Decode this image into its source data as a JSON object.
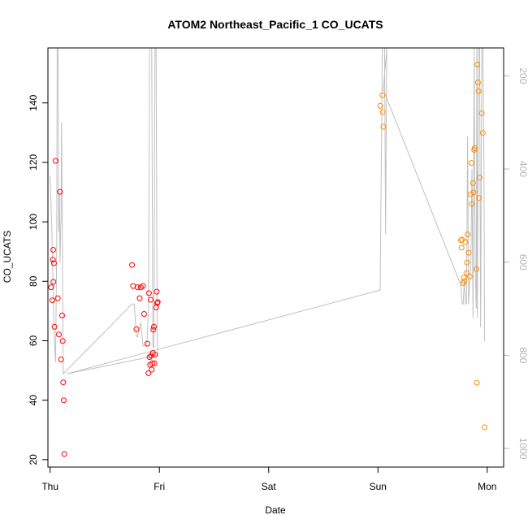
{
  "chart_data": {
    "type": "scatter",
    "title": "ATOM2 Northeast_Pacific_1 CO_UCATS",
    "xlabel": "Date",
    "ylabel": "CO_UCATS",
    "xlim": [
      -0.02,
      4.15
    ],
    "ylim": [
      17.5,
      158.5
    ],
    "x_ticks": [
      {
        "value": 0,
        "label": "Thu"
      },
      {
        "value": 1,
        "label": "Fri"
      },
      {
        "value": 2,
        "label": "Sat"
      },
      {
        "value": 3,
        "label": "Sun"
      },
      {
        "value": 4,
        "label": "Mon"
      }
    ],
    "y_ticks": [
      20,
      40,
      60,
      80,
      100,
      120,
      140
    ],
    "secondary_axis": {
      "side": "right",
      "color": "#b3b3b3",
      "reversed": true,
      "ylim": [
        1040,
        140
      ],
      "ticks": [
        200,
        400,
        600,
        800,
        1000
      ]
    },
    "series": [
      {
        "color": "#ff0000",
        "marker": "open-circle",
        "points": [
          [
            0.01,
            78.0
          ],
          [
            0.02,
            73.6
          ],
          [
            0.025,
            87.3
          ],
          [
            0.028,
            90.6
          ],
          [
            0.03,
            79.8
          ],
          [
            0.035,
            86.1
          ],
          [
            0.04,
            64.7
          ],
          [
            0.05,
            120.5
          ],
          [
            0.07,
            74.3
          ],
          [
            0.08,
            62.1
          ],
          [
            0.09,
            110.1
          ],
          [
            0.1,
            53.7
          ],
          [
            0.11,
            68.5
          ],
          [
            0.115,
            59.9
          ],
          [
            0.12,
            46.0
          ],
          [
            0.125,
            40.0
          ],
          [
            0.13,
            21.9
          ],
          [
            0.75,
            85.5
          ],
          [
            0.76,
            78.4
          ],
          [
            0.79,
            63.9
          ],
          [
            0.8,
            78.0
          ],
          [
            0.82,
            74.3
          ],
          [
            0.83,
            78.0
          ],
          [
            0.85,
            78.4
          ],
          [
            0.86,
            69.0
          ],
          [
            0.89,
            59.0
          ],
          [
            0.9,
            49.1
          ],
          [
            0.905,
            76.0
          ],
          [
            0.91,
            54.5
          ],
          [
            0.915,
            51.9
          ],
          [
            0.92,
            73.8
          ],
          [
            0.925,
            55.0
          ],
          [
            0.93,
            50.3
          ],
          [
            0.935,
            52.4
          ],
          [
            0.94,
            55.9
          ],
          [
            0.945,
            63.7
          ],
          [
            0.95,
            64.7
          ],
          [
            0.955,
            52.4
          ],
          [
            0.96,
            55.3
          ],
          [
            0.97,
            71.2
          ],
          [
            0.975,
            76.5
          ],
          [
            0.98,
            72.7
          ],
          [
            0.985,
            73.0
          ]
        ]
      },
      {
        "color": "#ff8c00",
        "marker": "open-circle",
        "points": [
          [
            3.02,
            139.0
          ],
          [
            3.04,
            142.6
          ],
          [
            3.045,
            136.9
          ],
          [
            3.05,
            132.0
          ],
          [
            3.76,
            93.8
          ],
          [
            3.765,
            91.3
          ],
          [
            3.77,
            94.0
          ],
          [
            3.78,
            79.4
          ],
          [
            3.785,
            81.2
          ],
          [
            3.79,
            80.1
          ],
          [
            3.8,
            93.2
          ],
          [
            3.81,
            82.8
          ],
          [
            3.815,
            86.3
          ],
          [
            3.82,
            95.8
          ],
          [
            3.83,
            89.6
          ],
          [
            3.84,
            81.6
          ],
          [
            3.85,
            109.3
          ],
          [
            3.855,
            119.8
          ],
          [
            3.86,
            106.0
          ],
          [
            3.87,
            113.0
          ],
          [
            3.875,
            109.9
          ],
          [
            3.88,
            124.2
          ],
          [
            3.885,
            124.8
          ],
          [
            3.9,
            84.1
          ],
          [
            3.905,
            45.9
          ],
          [
            3.91,
            152.9
          ],
          [
            3.915,
            146.9
          ],
          [
            3.92,
            143.9
          ],
          [
            3.925,
            108.0
          ],
          [
            3.93,
            114.9
          ],
          [
            3.95,
            136.5
          ],
          [
            3.96,
            129.9
          ],
          [
            3.975,
            30.9
          ]
        ]
      }
    ],
    "pressure_series": {
      "color": "#c0c0c0",
      "points": [
        [
          0.0,
          415
        ],
        [
          0.015,
          520
        ],
        [
          0.035,
          745
        ],
        [
          0.05,
          815
        ],
        [
          0.06,
          570
        ],
        [
          0.065,
          0
        ],
        [
          0.072,
          0
        ],
        [
          0.078,
          535
        ],
        [
          0.085,
          455
        ],
        [
          0.09,
          600
        ],
        [
          0.1,
          505
        ],
        [
          0.105,
          300
        ],
        [
          0.11,
          470
        ],
        [
          0.12,
          840
        ],
        [
          0.75,
          690
        ],
        [
          0.77,
          690
        ],
        [
          0.79,
          760
        ],
        [
          0.8,
          760
        ],
        [
          0.83,
          730
        ],
        [
          0.85,
          780
        ],
        [
          0.88,
          780
        ],
        [
          0.89,
          760
        ],
        [
          0.9,
          700
        ],
        [
          0.91,
          0
        ],
        [
          0.93,
          0
        ],
        [
          0.94,
          780
        ],
        [
          0.95,
          785
        ],
        [
          0.96,
          0
        ],
        [
          0.97,
          0
        ],
        [
          0.98,
          770
        ],
        [
          0.985,
          800
        ],
        [
          0.15,
          840
        ],
        [
          3.02,
          660
        ],
        [
          3.04,
          0
        ],
        [
          3.06,
          0
        ],
        [
          3.07,
          540
        ],
        [
          3.08,
          0
        ],
        [
          3.05,
          230
        ],
        [
          3.76,
          650
        ],
        [
          3.77,
          690
        ],
        [
          3.78,
          690
        ],
        [
          3.79,
          640
        ],
        [
          3.8,
          690
        ],
        [
          3.81,
          690
        ],
        [
          3.82,
          330
        ],
        [
          3.83,
          690
        ],
        [
          3.84,
          640
        ],
        [
          3.85,
          610
        ],
        [
          3.86,
          400
        ],
        [
          3.87,
          720
        ],
        [
          3.88,
          0
        ],
        [
          3.89,
          620
        ],
        [
          3.9,
          700
        ],
        [
          3.905,
          0
        ],
        [
          3.91,
          720
        ],
        [
          3.92,
          0
        ],
        [
          3.93,
          0
        ],
        [
          3.94,
          740
        ],
        [
          3.95,
          0
        ],
        [
          3.96,
          0
        ],
        [
          3.97,
          400
        ],
        [
          3.975,
          770
        ]
      ]
    }
  }
}
